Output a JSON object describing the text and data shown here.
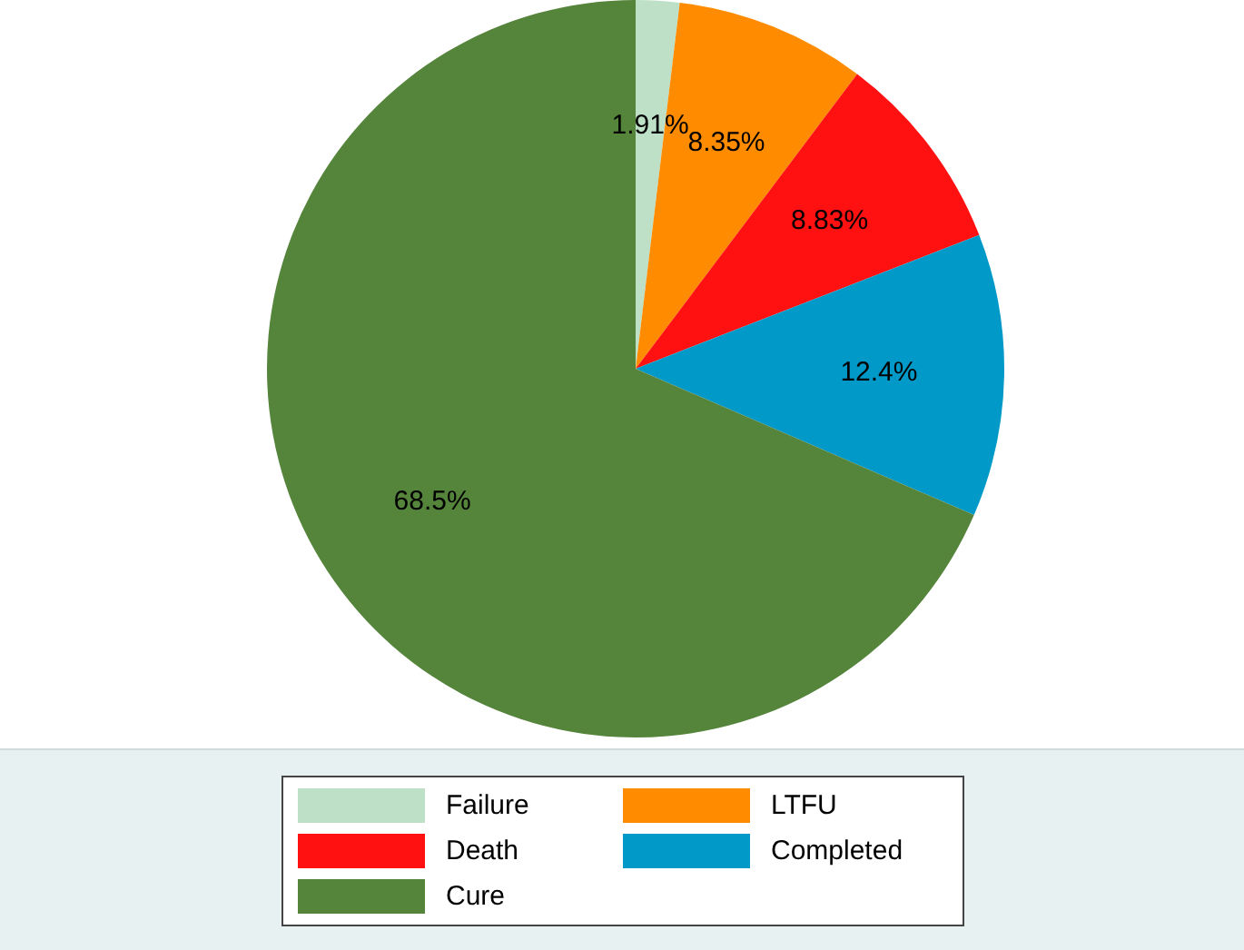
{
  "chart_data": {
    "type": "pie",
    "categories": [
      "Failure",
      "LTFU",
      "Death",
      "Completed",
      "Cure"
    ],
    "values": [
      1.91,
      8.35,
      8.83,
      12.4,
      68.5
    ],
    "colors": [
      "#bde0c6",
      "#ff8c00",
      "#ff1111",
      "#0099c8",
      "#55843b"
    ],
    "value_labels": [
      "1.91%",
      "8.35%",
      "8.83%",
      "12.4%",
      "68.5%"
    ],
    "legend": "bottom"
  }
}
